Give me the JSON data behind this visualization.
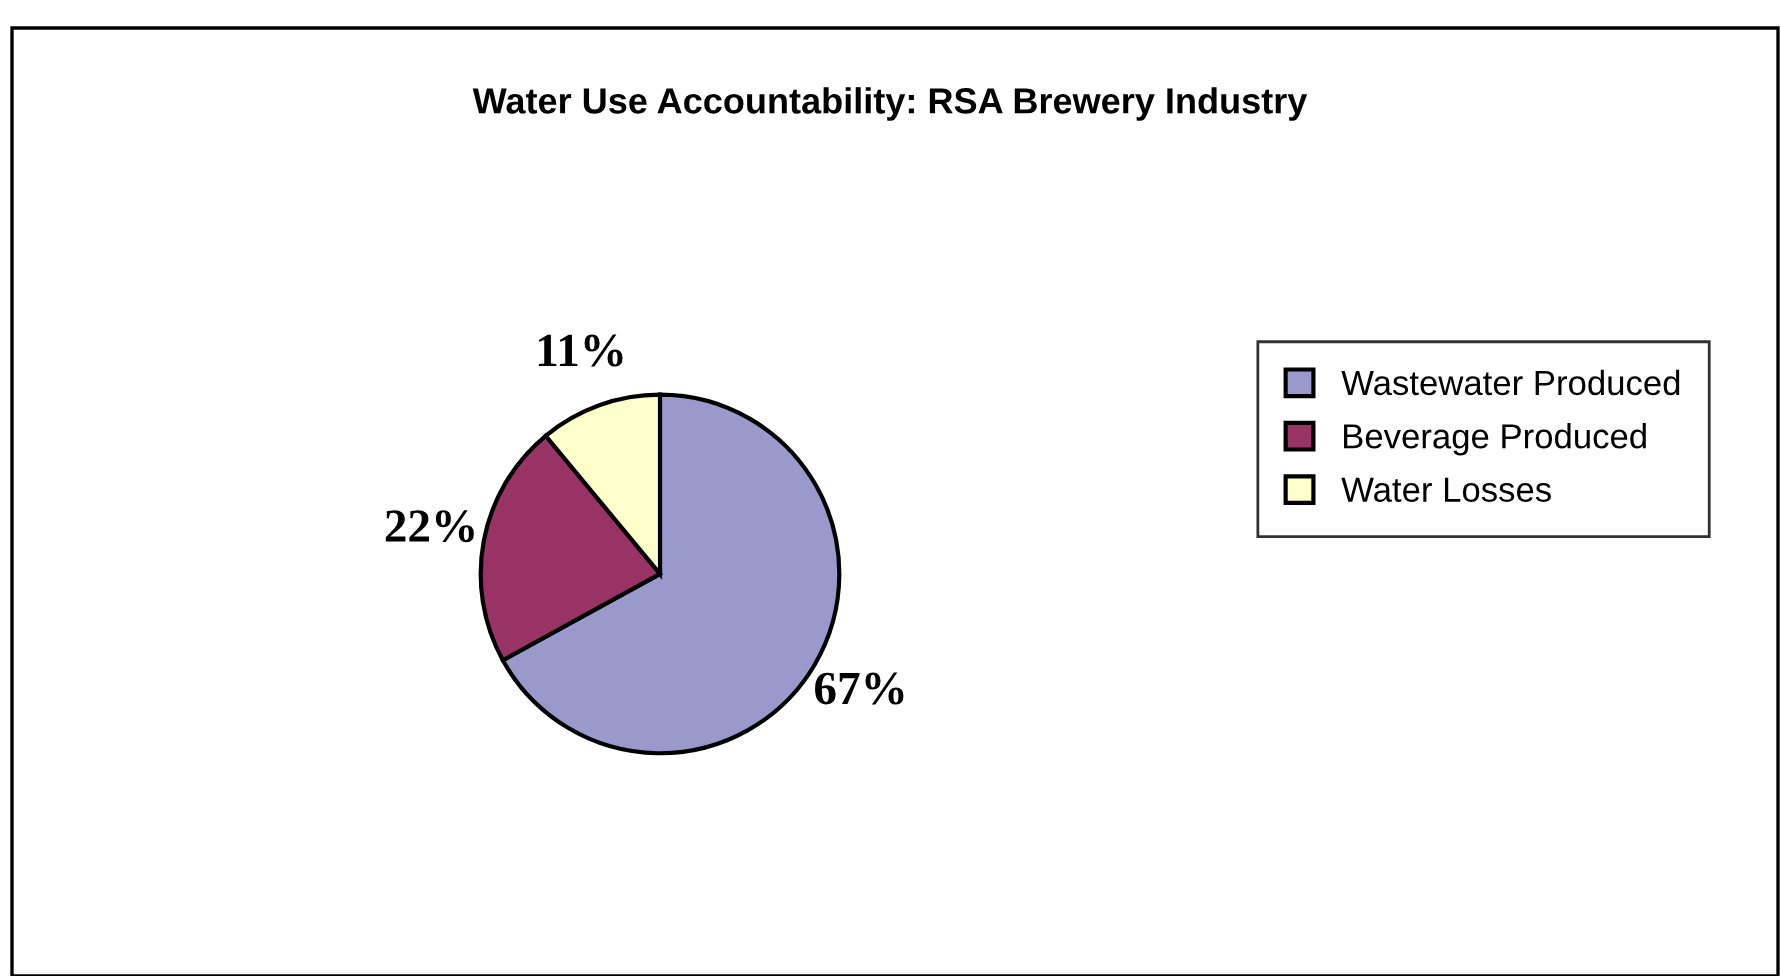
{
  "chart_data": {
    "type": "pie",
    "title": "Water Use Accountability: RSA Brewery Industry",
    "categories": [
      "Wastewater Produced",
      "Beverage Produced",
      "Water Losses"
    ],
    "values": [
      67,
      22,
      11
    ],
    "colors": [
      "#9999cc",
      "#993366",
      "#ffffcc"
    ],
    "value_labels": [
      "67%",
      "22%",
      "11%"
    ],
    "legend": "right"
  }
}
